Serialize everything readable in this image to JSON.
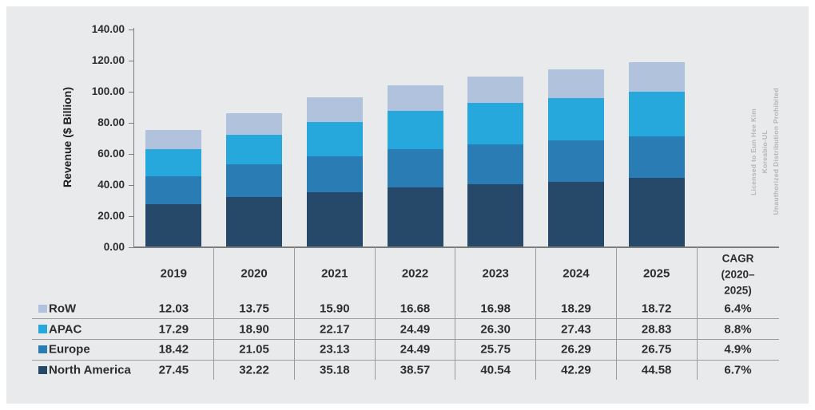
{
  "watermark": {
    "lines": [
      "Licensed to Eun Hee Kim",
      "Koreabio-UL",
      "Unauthorized Distribution Prohibited"
    ],
    "color": "#b5b5b8"
  },
  "chart_data": {
    "type": "bar",
    "stacked": true,
    "title": "",
    "ylabel": "Revenue ($ Billion)",
    "xlabel": "",
    "ylim": [
      0,
      140
    ],
    "ytick_step": 20,
    "ytick_labels": [
      "0.00",
      "20.00",
      "40.00",
      "60.00",
      "80.00",
      "100.00",
      "120.00",
      "140.00"
    ],
    "grid": false,
    "legend_position": "table-left",
    "categories": [
      "2019",
      "2020",
      "2021",
      "2022",
      "2023",
      "2024",
      "2025"
    ],
    "stack_order_bottom_to_top": [
      "North America",
      "Europe",
      "APAC",
      "RoW"
    ],
    "series": [
      {
        "name": "RoW",
        "color": "#b1c2dc",
        "values": [
          12.03,
          13.75,
          15.9,
          16.68,
          16.98,
          18.29,
          18.72
        ],
        "cagr": "6.4%"
      },
      {
        "name": "APAC",
        "color": "#26a8dc",
        "values": [
          17.29,
          18.9,
          22.17,
          24.49,
          26.3,
          27.43,
          28.83
        ],
        "cagr": "8.8%"
      },
      {
        "name": "Europe",
        "color": "#2a7cb5",
        "values": [
          18.42,
          21.05,
          23.13,
          24.49,
          25.75,
          26.29,
          26.75
        ],
        "cagr": "4.9%"
      },
      {
        "name": "North America",
        "color": "#26496a",
        "values": [
          27.45,
          32.22,
          35.18,
          38.57,
          40.54,
          42.29,
          44.58
        ],
        "cagr": "6.7%"
      }
    ],
    "cagr_header_lines": [
      "CAGR",
      "(2020–",
      "2025)"
    ]
  },
  "style": {
    "panel_bg": "#e9eaeb",
    "line_color": "#9b9b9b",
    "baseline_color": "#7d7d7d",
    "text_color": "#2d2d2d"
  }
}
